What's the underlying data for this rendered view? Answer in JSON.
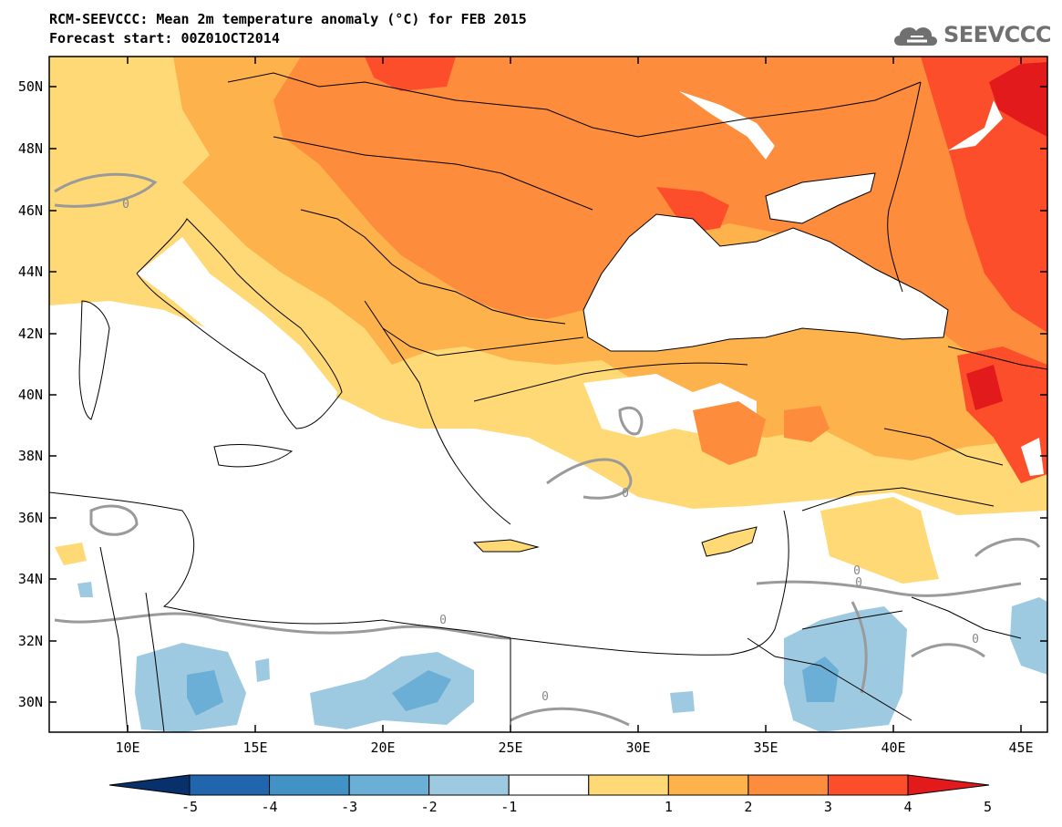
{
  "header": {
    "title_line1": "RCM-SEEVCCC: Mean 2m temperature anomaly (°C) for FEB 2015",
    "title_line2": "Forecast start: 00Z01OCT2014",
    "logo_text": "SEEVCCC"
  },
  "map": {
    "lon_labels": [
      "10E",
      "15E",
      "20E",
      "25E",
      "30E",
      "35E",
      "40E",
      "45E"
    ],
    "lat_labels": [
      "50N",
      "48N",
      "46N",
      "44N",
      "42N",
      "40N",
      "38N",
      "36N",
      "34N",
      "32N",
      "30N"
    ],
    "contour_labels": [
      "0",
      "0",
      "0",
      "0",
      "0",
      "0",
      "0"
    ]
  },
  "colorbar": {
    "tick_labels": [
      "-5",
      "-4",
      "-3",
      "-2",
      "-1",
      "1",
      "2",
      "3",
      "4",
      "5"
    ],
    "colors": [
      "#08306b",
      "#2166ac",
      "#4292c6",
      "#6baed6",
      "#9ecae1",
      "#ffffff",
      "#fed976",
      "#feb24c",
      "#fd8d3c",
      "#fc4e2a",
      "#e31a1c"
    ]
  }
}
